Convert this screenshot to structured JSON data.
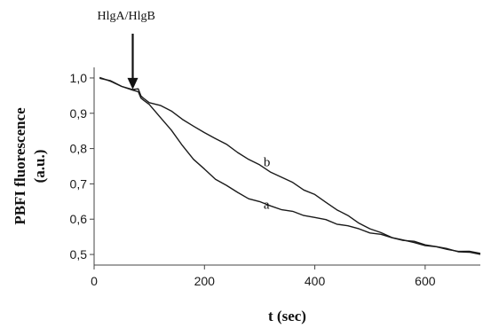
{
  "chart_data": {
    "type": "line",
    "xlabel": "t (sec)",
    "ylabel": "PBFI fluorescence (a.u.)",
    "ylabel_lines": [
      "PBFI fluorescence",
      "(a.u.)"
    ],
    "xlim": [
      0,
      700
    ],
    "ylim": [
      0.47,
      1.03
    ],
    "x_ticks": [
      0,
      200,
      400,
      600
    ],
    "y_ticks": [
      0.5,
      0.6,
      0.7,
      0.8,
      0.9,
      1.0
    ],
    "y_tick_labels": [
      "0,5",
      "0,6",
      "0,7",
      "0,8",
      "0,9",
      "1,0"
    ],
    "grid": false,
    "annotation": {
      "text": "HlgA/HlgB",
      "x": 70,
      "y": 0.965
    },
    "series": [
      {
        "name": "a",
        "x": [
          10,
          30,
          50,
          70,
          80,
          85,
          90,
          100,
          120,
          140,
          160,
          180,
          200,
          220,
          240,
          260,
          280,
          300,
          320,
          340,
          360,
          380,
          400,
          420,
          440,
          460,
          480,
          500,
          520,
          540,
          560,
          580,
          600,
          620,
          640,
          660,
          680,
          700
        ],
        "y": [
          1.0,
          0.99,
          0.978,
          0.965,
          0.96,
          0.945,
          0.935,
          0.925,
          0.89,
          0.85,
          0.81,
          0.77,
          0.74,
          0.715,
          0.695,
          0.675,
          0.66,
          0.648,
          0.638,
          0.628,
          0.62,
          0.612,
          0.605,
          0.597,
          0.588,
          0.58,
          0.572,
          0.563,
          0.555,
          0.548,
          0.541,
          0.535,
          0.529,
          0.522,
          0.515,
          0.51,
          0.505,
          0.5
        ],
        "label_at": {
          "x": 320,
          "y": 0.615
        }
      },
      {
        "name": "b",
        "x": [
          10,
          30,
          50,
          70,
          80,
          85,
          90,
          100,
          120,
          140,
          160,
          180,
          200,
          220,
          240,
          260,
          280,
          300,
          320,
          340,
          360,
          380,
          400,
          420,
          440,
          460,
          480,
          500,
          520,
          540,
          560,
          580,
          600,
          620,
          640,
          660,
          680,
          700
        ],
        "y": [
          1.0,
          0.99,
          0.978,
          0.965,
          0.97,
          0.95,
          0.94,
          0.932,
          0.922,
          0.905,
          0.885,
          0.862,
          0.845,
          0.83,
          0.81,
          0.79,
          0.77,
          0.752,
          0.735,
          0.718,
          0.703,
          0.685,
          0.668,
          0.648,
          0.628,
          0.608,
          0.59,
          0.573,
          0.56,
          0.55,
          0.54,
          0.533,
          0.527,
          0.52,
          0.515,
          0.51,
          0.507,
          0.505
        ],
        "label_at": {
          "x": 320,
          "y": 0.735
        }
      }
    ]
  }
}
